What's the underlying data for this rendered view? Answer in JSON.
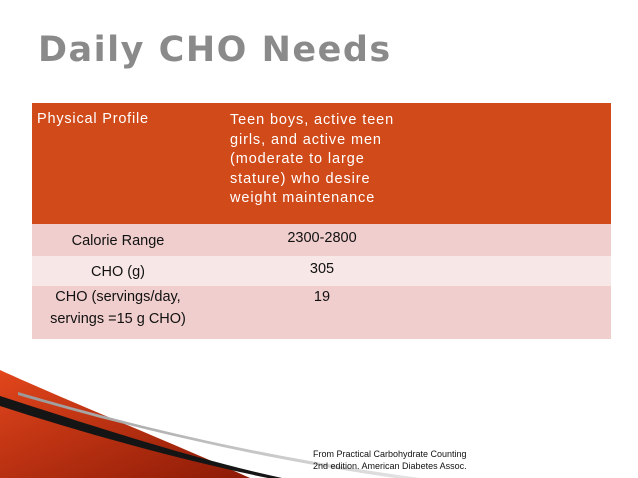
{
  "slide": {
    "title": "Daily CHO Needs"
  },
  "table": {
    "header": {
      "label": "Physical Profile",
      "value": "Teen boys, active teen girls, and active men (moderate to large stature) who desire weight maintenance"
    },
    "rows": [
      {
        "label": "Calorie Range",
        "value": "2300-2800"
      },
      {
        "label": "CHO (g)",
        "value": "305"
      },
      {
        "label": "CHO (servings/day, servings =15 g CHO)",
        "value": "19"
      }
    ]
  },
  "citation": {
    "line1": "From Practical Carbohydrate Counting",
    "line2": "2nd edition. American Diabetes Assoc."
  },
  "colors": {
    "header_bg": "#d14a19",
    "row_dark": "#f0cecd",
    "row_light": "#f8e7e7",
    "title": "#8a8a8a"
  }
}
